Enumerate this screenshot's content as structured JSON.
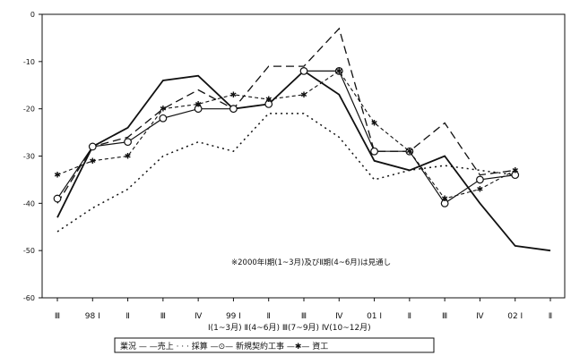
{
  "chart_data": {
    "type": "line",
    "x_labels": [
      "Ⅲ",
      "98 Ⅰ",
      "Ⅱ",
      "Ⅲ",
      "Ⅳ",
      "99 Ⅰ",
      "Ⅱ",
      "Ⅲ",
      "Ⅳ",
      "01 Ⅰ",
      "Ⅱ",
      "Ⅲ",
      "Ⅳ",
      "02 Ⅰ",
      "Ⅱ"
    ],
    "ylim": [
      -60,
      0
    ],
    "y_ticks": [
      0,
      -10,
      -20,
      -30,
      -40,
      -50,
      -60
    ],
    "grid": false,
    "quarter_note": "Ⅰ(1~3月) Ⅱ(4~6月) Ⅲ(7~9月) Ⅳ(10~12月)",
    "annotation": "※2000年Ⅰ期(1~3月)及びⅡ期(4~6月)は見通し",
    "legend": {
      "position": "bottom",
      "text": "業況 — —売上 · · · 採算 —⊙— 新規契約工事 —✱— 資工"
    },
    "series": [
      {
        "name": "業況",
        "style": "solid",
        "color": "#111111",
        "values": [
          -43,
          -28,
          -24,
          -14,
          -13,
          -20,
          -19,
          -12,
          -17,
          -31,
          -33,
          -30,
          -40,
          -49,
          -50
        ]
      },
      {
        "name": "売上",
        "style": "dashed",
        "color": "#111111",
        "values": [
          -40,
          -28,
          -26,
          -20,
          -16,
          -20,
          -11,
          -11,
          -3,
          -29,
          -29,
          -23,
          -34,
          -33,
          null
        ]
      },
      {
        "name": "採算",
        "style": "dotted",
        "color": "#111111",
        "values": [
          -46,
          -41,
          -37,
          -30,
          -27,
          -29,
          -21,
          -21,
          -26,
          -35,
          -33,
          -32,
          -33,
          -34,
          null
        ]
      },
      {
        "name": "新規契約工事",
        "style": "circle",
        "color": "#111111",
        "values": [
          -39,
          -28,
          -27,
          -22,
          -20,
          -20,
          -19,
          -12,
          -12,
          -29,
          -29,
          -40,
          -35,
          -34,
          null
        ]
      },
      {
        "name": "資工",
        "style": "star",
        "color": "#111111",
        "values": [
          -34,
          -31,
          -30,
          -20,
          -19,
          -17,
          -18,
          -17,
          -12,
          -23,
          -29,
          -39,
          -37,
          -33,
          null
        ]
      }
    ]
  }
}
